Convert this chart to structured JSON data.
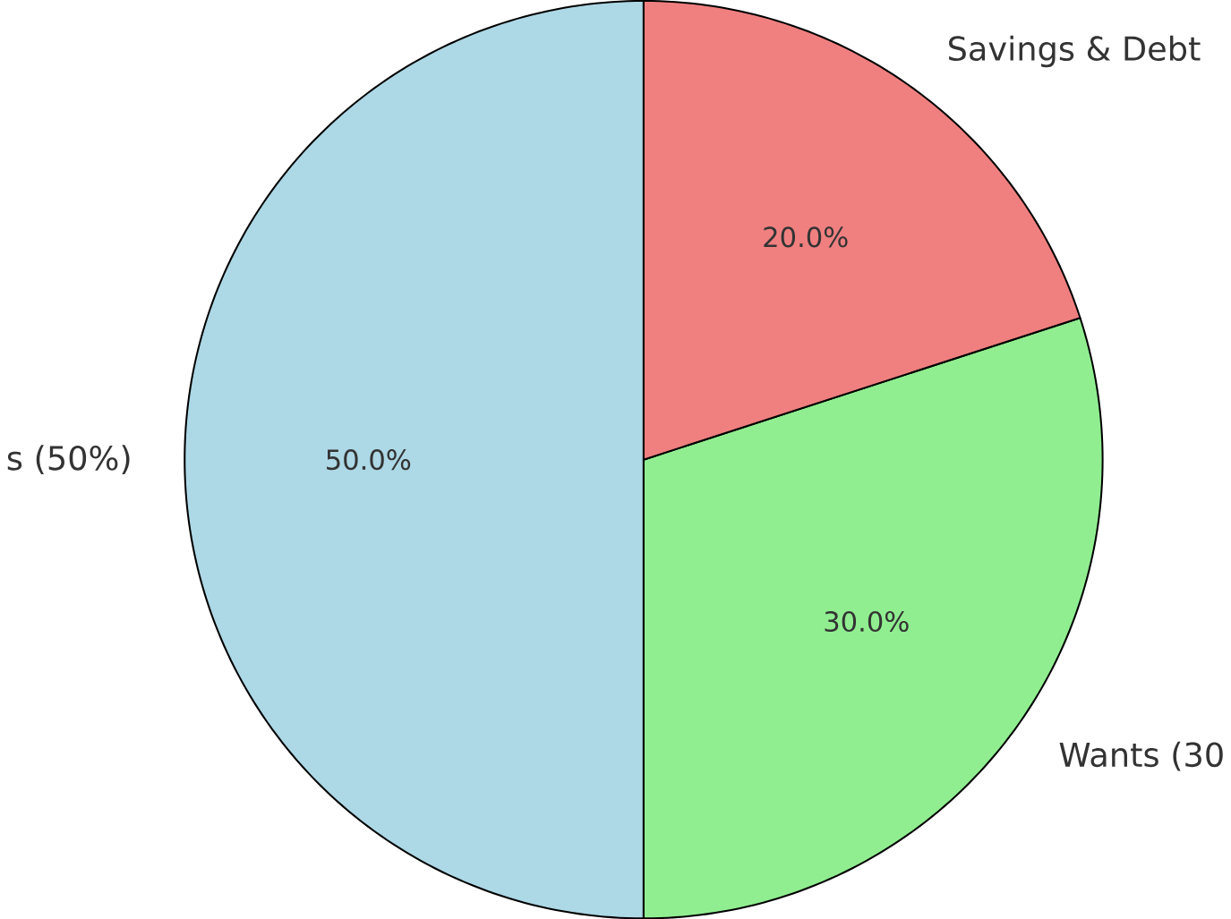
{
  "chart_data": {
    "type": "pie",
    "categories": [
      "s (50%)",
      "Wants (30",
      "Savings & Debt"
    ],
    "values": [
      50,
      30,
      20
    ],
    "colors": [
      "#add8e6",
      "#90ee90",
      "#f08080"
    ],
    "value_labels": [
      "50.0%",
      "30.0%",
      "20.0%"
    ]
  }
}
